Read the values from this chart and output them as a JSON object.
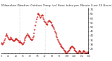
{
  "title": "Milwaukee Weather Outdoor Temp (vs) Heat Index per Minute (Last 24 Hours)",
  "line_color": "#cc0000",
  "bg_color": "#ffffff",
  "vline_color": "#aaaaaa",
  "yticks": [
    25,
    30,
    35,
    40,
    45,
    50,
    55,
    60,
    65,
    70
  ],
  "ylim": [
    20,
    72
  ],
  "xlim": [
    0,
    144
  ],
  "vlines": [
    30,
    72
  ],
  "x": [
    0,
    1,
    2,
    3,
    4,
    5,
    6,
    7,
    8,
    9,
    10,
    11,
    12,
    13,
    14,
    15,
    16,
    17,
    18,
    19,
    20,
    21,
    22,
    23,
    24,
    25,
    26,
    27,
    28,
    29,
    30,
    31,
    32,
    33,
    34,
    35,
    36,
    37,
    38,
    39,
    40,
    41,
    42,
    43,
    44,
    45,
    46,
    47,
    48,
    49,
    50,
    51,
    52,
    53,
    54,
    55,
    56,
    57,
    58,
    59,
    60,
    61,
    62,
    63,
    64,
    65,
    66,
    67,
    68,
    69,
    70,
    71,
    72,
    73,
    74,
    75,
    76,
    77,
    78,
    79,
    80,
    81,
    82,
    83,
    84,
    85,
    86,
    87,
    88,
    89,
    90,
    91,
    92,
    93,
    94,
    95,
    96,
    97,
    98,
    99,
    100,
    101,
    102,
    103,
    104,
    105,
    106,
    107,
    108,
    109,
    110,
    111,
    112,
    113,
    114,
    115,
    116,
    117,
    118,
    119,
    120,
    121,
    122,
    123,
    124,
    125,
    126,
    127,
    128,
    129,
    130,
    131,
    132,
    133,
    134,
    135,
    136,
    137,
    138,
    139,
    140,
    141,
    142,
    143,
    144
  ],
  "y": [
    32,
    31,
    30,
    31,
    33,
    35,
    37,
    40,
    42,
    41,
    40,
    38,
    37,
    36,
    36,
    37,
    38,
    37,
    36,
    35,
    34,
    34,
    35,
    36,
    37,
    37,
    36,
    35,
    34,
    33,
    33,
    34,
    33,
    32,
    31,
    30,
    31,
    33,
    35,
    37,
    38,
    40,
    41,
    42,
    41,
    40,
    39,
    38,
    37,
    36,
    35,
    36,
    38,
    40,
    43,
    47,
    52,
    56,
    59,
    62,
    65,
    66,
    65,
    63,
    61,
    62,
    63,
    64,
    63,
    61,
    59,
    57,
    56,
    55,
    54,
    53,
    54,
    56,
    57,
    58,
    57,
    56,
    55,
    53,
    52,
    51,
    50,
    48,
    46,
    44,
    42,
    40,
    38,
    36,
    34,
    33,
    31,
    30,
    29,
    28,
    27,
    26,
    25,
    24,
    23,
    22,
    21,
    20,
    20,
    21,
    22,
    23,
    24,
    25,
    26,
    27,
    28,
    28,
    27,
    26,
    25,
    24,
    23,
    22,
    21,
    20,
    20,
    21,
    22,
    23,
    22,
    21,
    20,
    20,
    21,
    22,
    23,
    22,
    21,
    20,
    20,
    21,
    20,
    20,
    21
  ],
  "title_fontsize": 3.0,
  "tick_fontsize": 2.8,
  "xtick_fontsize": 2.2
}
